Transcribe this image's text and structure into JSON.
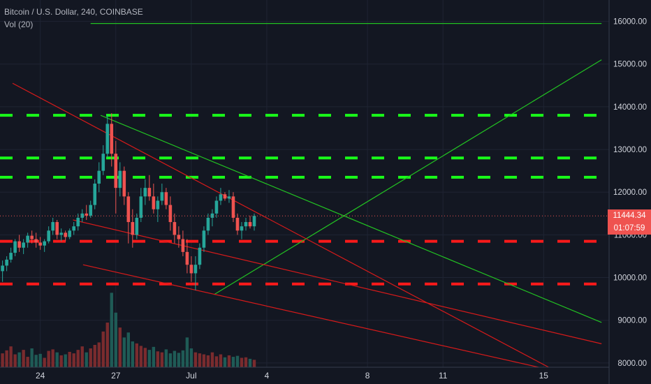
{
  "header": {
    "symbol_line": "Bitcoin / U.S. Dollar, 240, COINBASE",
    "volume_line": "Vol (20)"
  },
  "price_tag": {
    "last_price": "11444.34",
    "countdown": "01:07:59"
  },
  "colors": {
    "background": "#131722",
    "grid": "#1f2433",
    "axis_text": "#d1d4dc",
    "up": "#ef5350",
    "down": "#26a69a",
    "support_dash": "#ff1a1a",
    "resistance_dash": "#19ff19",
    "trend_green": "#22c222",
    "trend_red": "#d61a1a",
    "vol_up": "#7a2b2e",
    "vol_down": "#1f5b56",
    "last_price": "#ef5350"
  },
  "chart_data": {
    "type": "candlestick",
    "title": "Bitcoin / U.S. Dollar, 240, COINBASE",
    "ylim": [
      7900,
      16500
    ],
    "y_ticks": [
      8000,
      9000,
      10000,
      11000,
      12000,
      13000,
      14000,
      15000,
      16000
    ],
    "y_tick_labels": [
      "8000.00",
      "9000.00",
      "10000.00",
      "11000.00",
      "12000.00",
      "13000.00",
      "14000.00",
      "15000.00",
      "16000.00"
    ],
    "x_labels": [
      {
        "label": "24",
        "x": 24.0
      },
      {
        "label": "27",
        "x": 27.0
      },
      {
        "label": "Jul",
        "x": 30.0
      },
      {
        "label": "4",
        "x": 33.0
      },
      {
        "label": "8",
        "x": 37.0
      },
      {
        "label": "11",
        "x": 40.0
      },
      {
        "label": "15",
        "x": 44.0
      }
    ],
    "xlim": [
      22.4,
      46.6
    ],
    "candle_step": 0.1667,
    "candles_start_x": 22.5,
    "candles_up_flag_legend": "0=down(teal),1=up(red)",
    "candles": [
      [
        10150,
        10400,
        9900,
        10280
      ],
      [
        10280,
        10500,
        10150,
        10420
      ],
      [
        10420,
        10700,
        10350,
        10580
      ],
      [
        10580,
        10900,
        10500,
        10850
      ],
      [
        10850,
        11000,
        10600,
        10700
      ],
      [
        10700,
        10900,
        10550,
        10820
      ],
      [
        10820,
        11050,
        10700,
        10980
      ],
      [
        10980,
        11100,
        10800,
        10900
      ],
      [
        10900,
        11050,
        10700,
        10820
      ],
      [
        10820,
        10950,
        10650,
        10750
      ],
      [
        10750,
        10900,
        10600,
        10850
      ],
      [
        10850,
        11200,
        10800,
        11100
      ],
      [
        11100,
        11400,
        11000,
        11300
      ],
      [
        11300,
        11350,
        10900,
        11000
      ],
      [
        11000,
        11150,
        10850,
        11050
      ],
      [
        11050,
        11100,
        10850,
        10950
      ],
      [
        10950,
        11150,
        10900,
        11100
      ],
      [
        11100,
        11300,
        11000,
        11200
      ],
      [
        11200,
        11500,
        11100,
        11400
      ],
      [
        11400,
        11600,
        11300,
        11500
      ],
      [
        11500,
        11700,
        11350,
        11450
      ],
      [
        11450,
        11800,
        11400,
        11700
      ],
      [
        11700,
        12300,
        11600,
        12200
      ],
      [
        12200,
        12700,
        12000,
        12500
      ],
      [
        12500,
        13100,
        12400,
        12900
      ],
      [
        12900,
        13800,
        12800,
        13600
      ],
      [
        13600,
        13850,
        12600,
        12900
      ],
      [
        12900,
        13200,
        11500,
        12100
      ],
      [
        12100,
        12700,
        11900,
        12500
      ],
      [
        12500,
        12600,
        11700,
        11900
      ],
      [
        11900,
        12000,
        10800,
        11300
      ],
      [
        11300,
        11600,
        10700,
        11000
      ],
      [
        11000,
        11500,
        10900,
        11400
      ],
      [
        11400,
        12100,
        11300,
        11900
      ],
      [
        11900,
        12300,
        11700,
        12100
      ],
      [
        12100,
        12400,
        11800,
        11900
      ],
      [
        11900,
        12200,
        11500,
        11600
      ],
      [
        11600,
        11900,
        11300,
        11800
      ],
      [
        11800,
        12200,
        11700,
        12000
      ],
      [
        12000,
        12100,
        11600,
        11700
      ],
      [
        11700,
        11900,
        11100,
        11300
      ],
      [
        11300,
        11500,
        10800,
        11000
      ],
      [
        11000,
        11200,
        10700,
        10900
      ],
      [
        10900,
        11100,
        10500,
        10600
      ],
      [
        10600,
        10900,
        10100,
        10300
      ],
      [
        10300,
        10500,
        9900,
        10100
      ],
      [
        10100,
        10500,
        9700,
        10300
      ],
      [
        10300,
        10800,
        10200,
        10700
      ],
      [
        10700,
        11200,
        10600,
        11100
      ],
      [
        11100,
        11500,
        11000,
        11400
      ],
      [
        11400,
        11600,
        11200,
        11500
      ],
      [
        11500,
        11900,
        11400,
        11800
      ],
      [
        11800,
        12100,
        11700,
        11950
      ],
      [
        11950,
        12000,
        11800,
        11850
      ],
      [
        11850,
        12050,
        11750,
        11900
      ],
      [
        11900,
        12000,
        11300,
        11400
      ],
      [
        11400,
        11500,
        11000,
        11100
      ],
      [
        11100,
        11300,
        10900,
        11200
      ],
      [
        11200,
        11400,
        11100,
        11300
      ],
      [
        11300,
        11450,
        11150,
        11200
      ],
      [
        11200,
        11500,
        11100,
        11444
      ]
    ],
    "volumes": [
      280,
      340,
      420,
      260,
      300,
      350,
      210,
      380,
      250,
      270,
      190,
      330,
      360,
      300,
      240,
      260,
      310,
      280,
      350,
      420,
      300,
      380,
      450,
      500,
      720,
      900,
      1500,
      1100,
      800,
      600,
      700,
      520,
      480,
      430,
      390,
      350,
      410,
      320,
      300,
      360,
      280,
      330,
      290,
      340,
      600,
      380,
      300,
      280,
      260,
      240,
      300,
      220,
      260,
      200,
      240,
      210,
      230,
      190,
      200,
      170,
      150
    ],
    "volume_range": [
      0,
      1550
    ],
    "horizontal_levels": [
      {
        "price": 13800,
        "style": "resistance_dash"
      },
      {
        "price": 12800,
        "style": "resistance_dash"
      },
      {
        "price": 12350,
        "style": "resistance_dash"
      },
      {
        "price": 10850,
        "style": "support_dash"
      },
      {
        "price": 9850,
        "style": "support_dash"
      },
      {
        "price": 15950,
        "style": "trend_green",
        "x_from": 26.0,
        "x_to": 46.3
      }
    ],
    "trend_lines": [
      {
        "style": "trend_green",
        "x1": 26.4,
        "y1": 13800,
        "x2": 46.3,
        "y2": 8950
      },
      {
        "style": "trend_green",
        "x1": 30.9,
        "y1": 9600,
        "x2": 46.3,
        "y2": 15100
      },
      {
        "style": "trend_red",
        "x1": 22.9,
        "y1": 14550,
        "x2": 44.2,
        "y2": 7900
      },
      {
        "style": "trend_red",
        "x1": 25.3,
        "y1": 11350,
        "x2": 46.3,
        "y2": 8450
      },
      {
        "style": "trend_red",
        "x1": 25.7,
        "y1": 10300,
        "x2": 43.8,
        "y2": 7900
      }
    ],
    "last_price": 11444.34
  }
}
